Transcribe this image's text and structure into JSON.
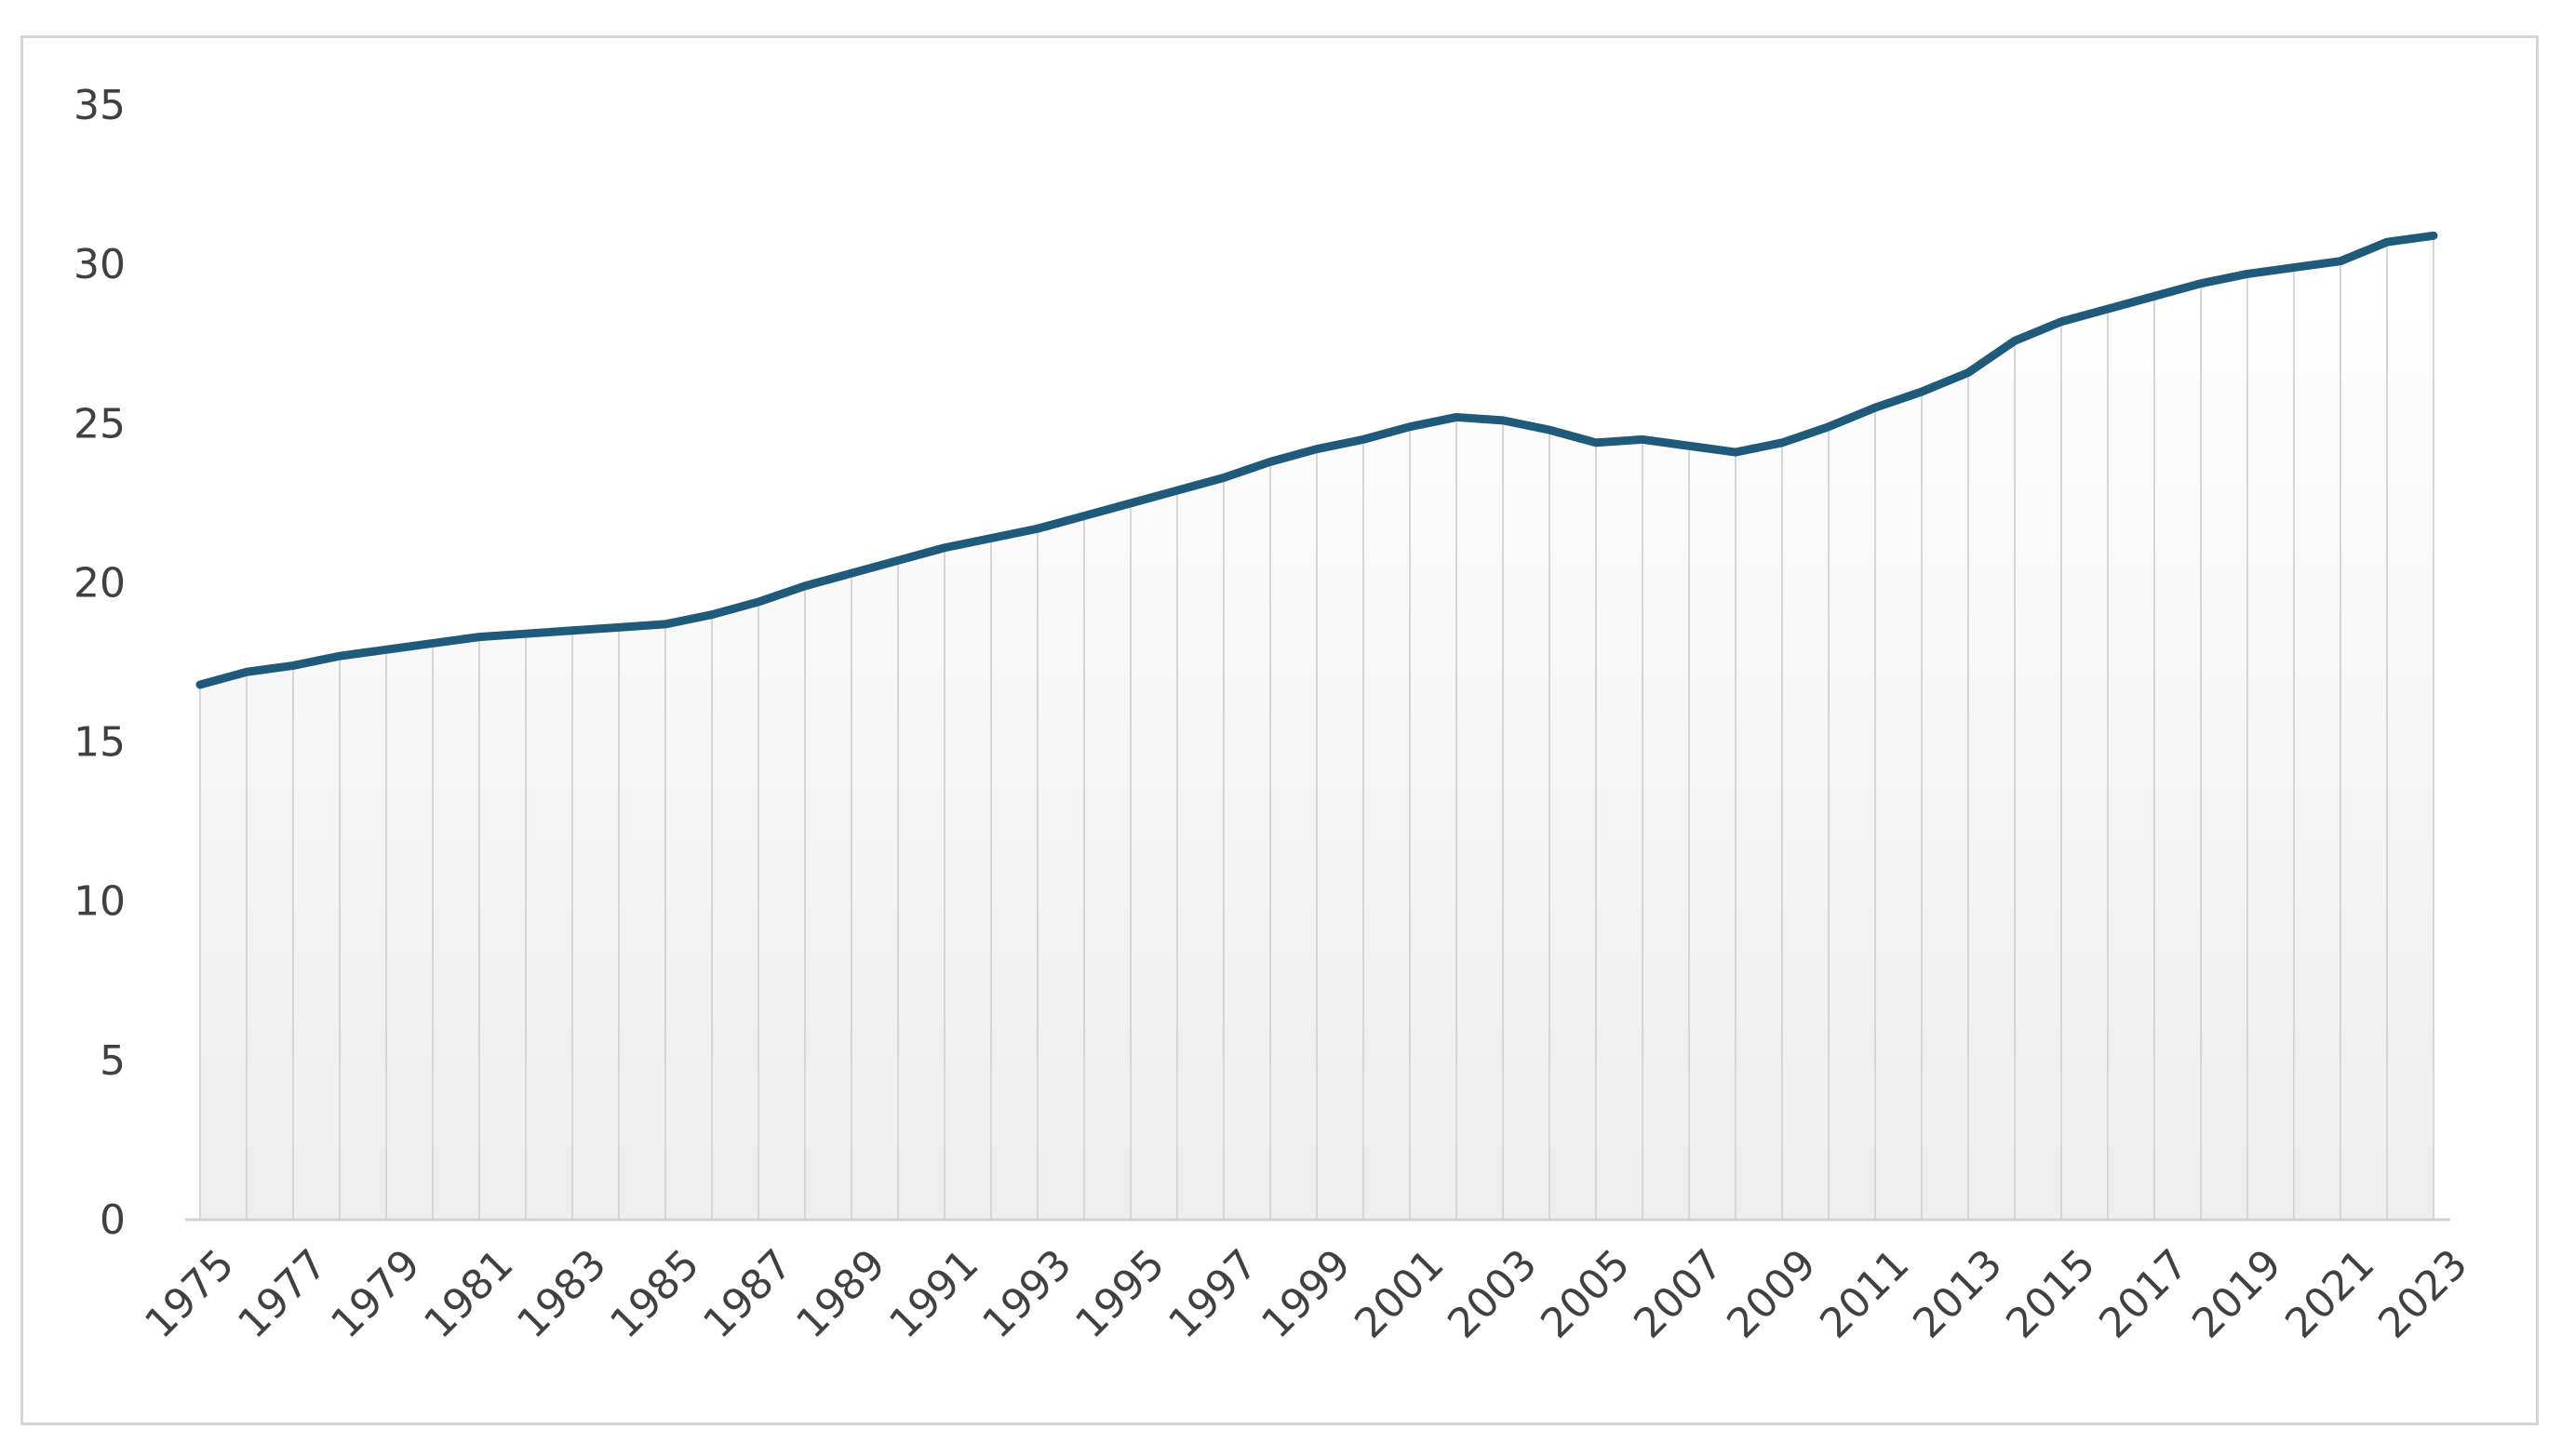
{
  "chart_data": {
    "type": "line",
    "title": "",
    "xlabel": "",
    "ylabel": "",
    "ylim": [
      0,
      35
    ],
    "y_ticks": [
      "0",
      "5",
      "10",
      "15",
      "20",
      "25",
      "30",
      "35"
    ],
    "x_tick_labels": [
      "1975",
      "1977",
      "1979",
      "1981",
      "1983",
      "1985",
      "1987",
      "1989",
      "1991",
      "1993",
      "1995",
      "1997",
      "1999",
      "2001",
      "2003",
      "2005",
      "2007",
      "2009",
      "2011",
      "2013",
      "2015",
      "2017",
      "2019",
      "2021",
      "2023"
    ],
    "grid": false,
    "drop_lines": true,
    "area_gradient": true,
    "legend": "none",
    "colors": {
      "line": "#1f5a7a",
      "drop_lines": "#d6d6d6",
      "axis": "#d2d2d2",
      "frame_border": "#d4d4d4",
      "tick_text": "#404040",
      "area_top": "#ffffff",
      "area_bottom": "#eeeeee"
    },
    "x": [
      1975,
      1976,
      1977,
      1978,
      1979,
      1980,
      1981,
      1982,
      1983,
      1984,
      1985,
      1986,
      1987,
      1988,
      1989,
      1990,
      1991,
      1992,
      1993,
      1994,
      1995,
      1996,
      1997,
      1998,
      1999,
      2000,
      2001,
      2002,
      2003,
      2004,
      2005,
      2006,
      2007,
      2008,
      2009,
      2010,
      2011,
      2012,
      2013,
      2014,
      2015,
      2016,
      2017,
      2018,
      2019,
      2020,
      2021,
      2022,
      2023
    ],
    "series": [
      {
        "values": [
          16.8,
          17.2,
          17.4,
          17.7,
          17.9,
          18.1,
          18.3,
          18.4,
          18.5,
          18.6,
          18.7,
          19.0,
          19.4,
          19.9,
          20.3,
          20.7,
          21.1,
          21.4,
          21.7,
          22.1,
          22.5,
          22.9,
          23.3,
          23.8,
          24.2,
          24.5,
          24.9,
          25.2,
          25.1,
          24.8,
          24.4,
          24.5,
          24.3,
          24.1,
          24.4,
          24.9,
          25.5,
          26.0,
          26.6,
          27.6,
          28.2,
          28.6,
          29.0,
          29.4,
          29.7,
          29.9,
          30.1,
          30.7,
          30.9
        ]
      }
    ]
  }
}
